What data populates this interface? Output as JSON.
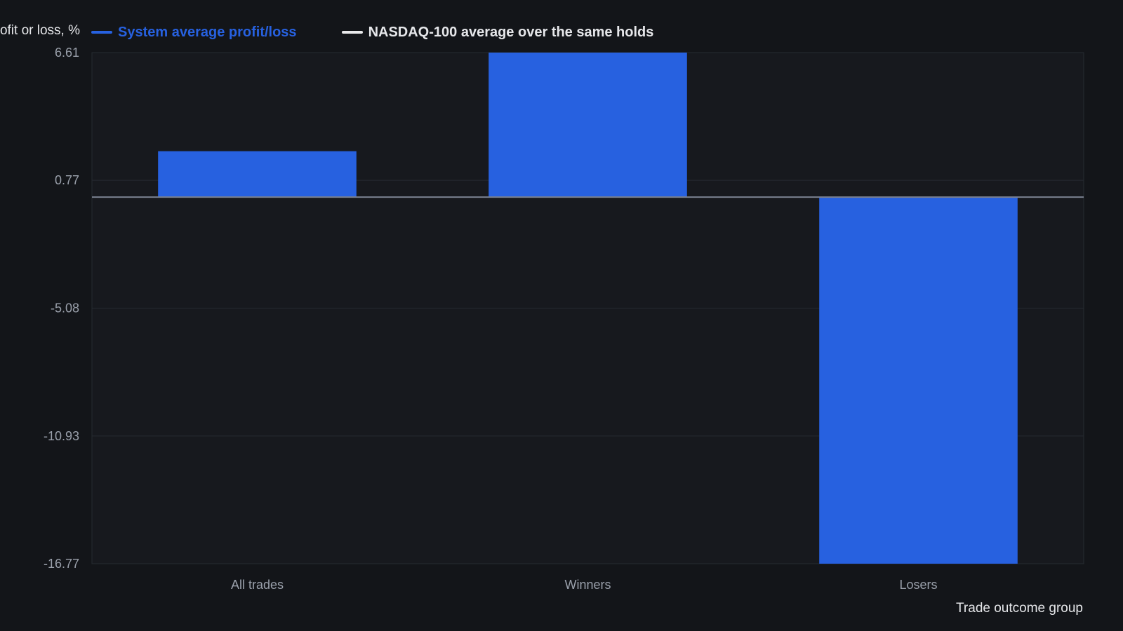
{
  "chart_data": {
    "type": "bar",
    "ylabel": "Profit or loss, %",
    "xlabel": "Trade outcome group",
    "categories": [
      "All trades",
      "Winners",
      "Losers"
    ],
    "series": [
      {
        "name": "System average profit/loss",
        "color": "#2761e0",
        "values": [
          2.1,
          6.61,
          -16.77
        ]
      },
      {
        "name": "NASDAQ-100 average over the same holds",
        "color": "#e8e8ea",
        "values": [
          null,
          null,
          null
        ]
      }
    ],
    "yticks": [
      "6.61",
      "0.77",
      "-5.08",
      "-10.93",
      "-16.77"
    ],
    "ylim": [
      -16.77,
      6.61
    ],
    "grid": true,
    "legend": "top-left",
    "colors": {
      "background": "#131519",
      "plot_background": "#17191e",
      "grid": "#262a31",
      "zero_line": "#7a8190",
      "tick_text": "#9aa0ab",
      "label_text": "#e6e7ea"
    }
  }
}
